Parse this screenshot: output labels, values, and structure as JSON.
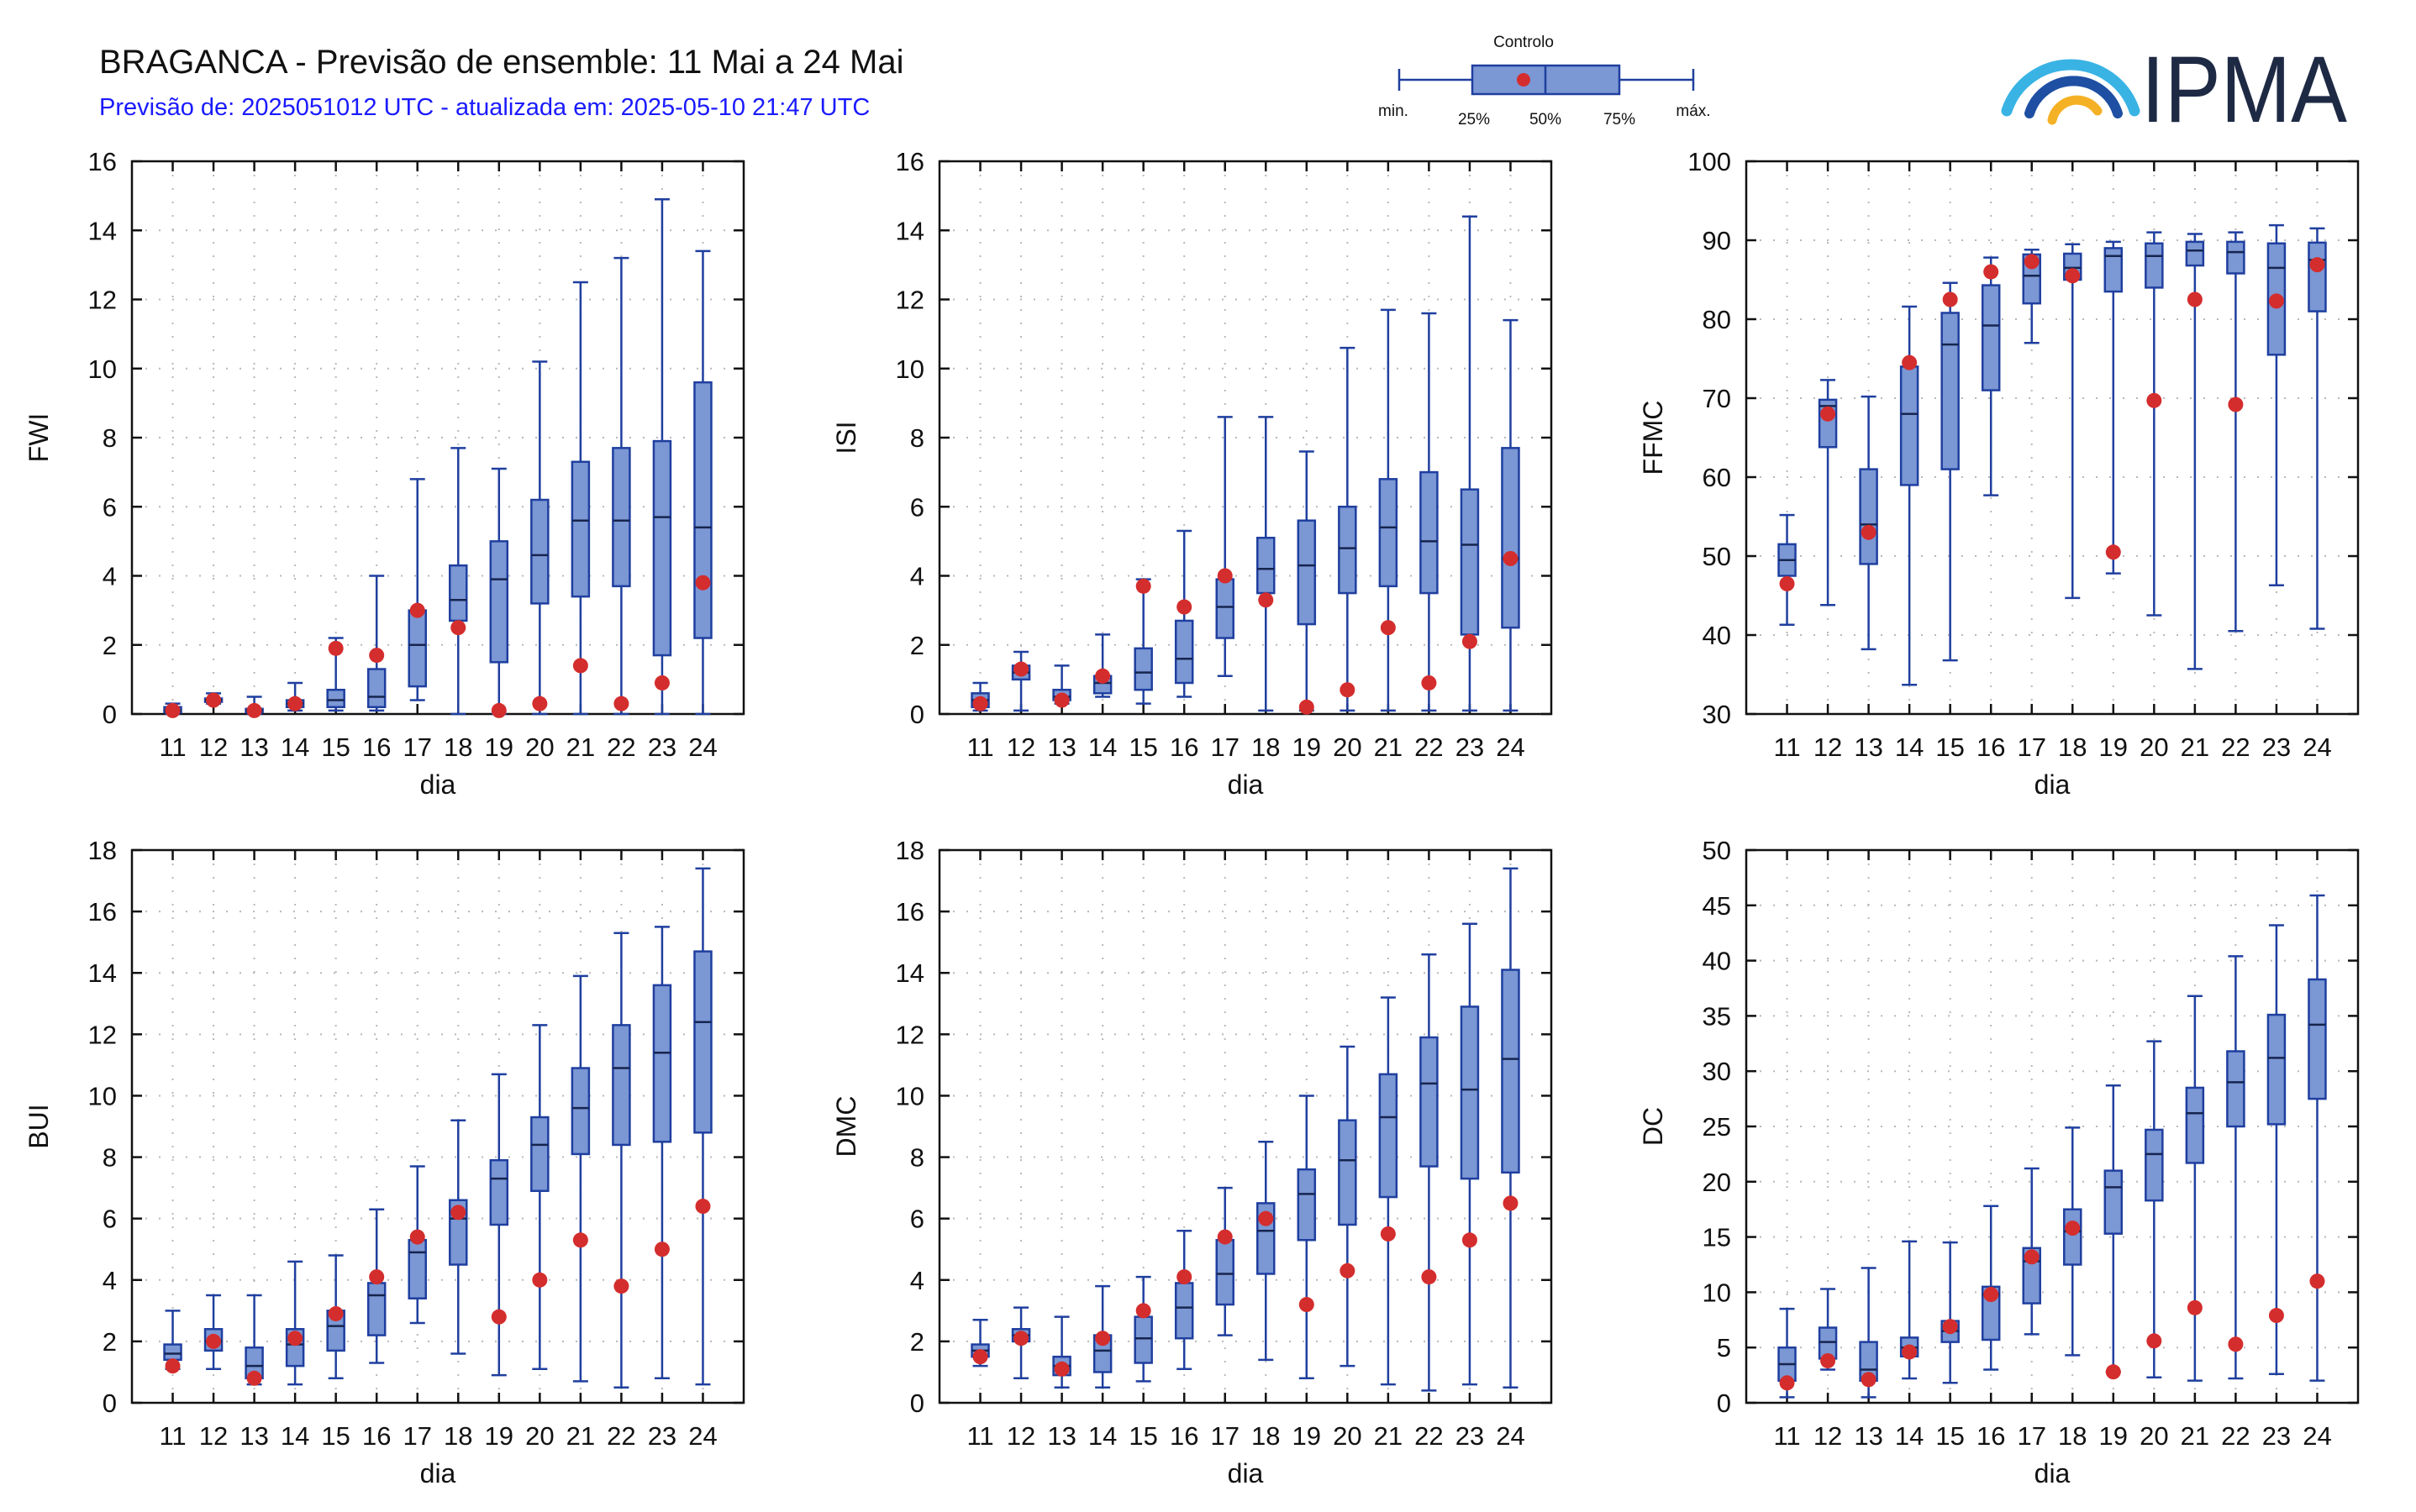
{
  "header": {
    "title": "BRAGANCA - Previsão de ensemble: 11 Mai a 24 Mai",
    "subtitle": "Previsão de: 2025051012 UTC - atualizada em: 2025-05-10 21:47 UTC"
  },
  "legend": {
    "control_label": "Controlo",
    "min_label": "min.",
    "p25_label": "25%",
    "p50_label": "50%",
    "p75_label": "75%",
    "max_label": "máx."
  },
  "logo": {
    "text": "IPMA"
  },
  "colors": {
    "box_fill": "#7b97d4",
    "box_stroke": "#1f3f9f",
    "control": "#d42d2d",
    "grid": "#b8b8b8"
  },
  "chart_data": [
    {
      "type": "box",
      "ylabel": "FWI",
      "xlabel": "dia",
      "ylim": [
        0,
        16
      ],
      "yticks": [
        0,
        2,
        4,
        6,
        8,
        10,
        12,
        14,
        16
      ],
      "categories": [
        "11",
        "12",
        "13",
        "14",
        "15",
        "16",
        "17",
        "18",
        "19",
        "20",
        "21",
        "22",
        "23",
        "24"
      ],
      "boxes": [
        {
          "min": 0,
          "q1": 0.05,
          "median": 0.1,
          "q3": 0.2,
          "max": 0.3
        },
        {
          "min": 0.3,
          "q1": 0.35,
          "median": 0.4,
          "q3": 0.45,
          "max": 0.6
        },
        {
          "min": 0,
          "q1": 0.05,
          "median": 0.1,
          "q3": 0.15,
          "max": 0.5
        },
        {
          "min": 0.1,
          "q1": 0.2,
          "median": 0.3,
          "q3": 0.4,
          "max": 0.9
        },
        {
          "min": 0.1,
          "q1": 0.2,
          "median": 0.4,
          "q3": 0.7,
          "max": 2.2
        },
        {
          "min": 0.1,
          "q1": 0.2,
          "median": 0.5,
          "q3": 1.3,
          "max": 4.0
        },
        {
          "min": 0.4,
          "q1": 0.8,
          "median": 2.0,
          "q3": 3.0,
          "max": 6.8
        },
        {
          "min": 0,
          "q1": 2.7,
          "median": 3.3,
          "q3": 4.3,
          "max": 7.7
        },
        {
          "min": 0,
          "q1": 1.5,
          "median": 3.9,
          "q3": 5.0,
          "max": 7.1
        },
        {
          "min": 0,
          "q1": 3.2,
          "median": 4.6,
          "q3": 6.2,
          "max": 10.2
        },
        {
          "min": 0,
          "q1": 3.4,
          "median": 5.6,
          "q3": 7.3,
          "max": 12.5
        },
        {
          "min": 0,
          "q1": 3.7,
          "median": 5.6,
          "q3": 7.7,
          "max": 13.2
        },
        {
          "min": 0,
          "q1": 1.7,
          "median": 5.7,
          "q3": 7.9,
          "max": 14.9
        },
        {
          "min": 0,
          "q1": 2.2,
          "median": 5.4,
          "q3": 9.6,
          "max": 13.4
        }
      ],
      "control": [
        0.1,
        0.4,
        0.1,
        0.3,
        1.9,
        1.7,
        3.0,
        2.5,
        0.1,
        0.3,
        1.4,
        0.3,
        0.9,
        3.8
      ]
    },
    {
      "type": "box",
      "ylabel": "ISI",
      "xlabel": "dia",
      "ylim": [
        0,
        16
      ],
      "yticks": [
        0,
        2,
        4,
        6,
        8,
        10,
        12,
        14,
        16
      ],
      "categories": [
        "11",
        "12",
        "13",
        "14",
        "15",
        "16",
        "17",
        "18",
        "19",
        "20",
        "21",
        "22",
        "23",
        "24"
      ],
      "boxes": [
        {
          "min": 0.1,
          "q1": 0.2,
          "median": 0.4,
          "q3": 0.6,
          "max": 0.9
        },
        {
          "min": 0.1,
          "q1": 1.0,
          "median": 1.2,
          "q3": 1.4,
          "max": 1.8
        },
        {
          "min": 0.3,
          "q1": 0.4,
          "median": 0.5,
          "q3": 0.7,
          "max": 1.4
        },
        {
          "min": 0.5,
          "q1": 0.6,
          "median": 0.9,
          "q3": 1.1,
          "max": 2.3
        },
        {
          "min": 0.3,
          "q1": 0.7,
          "median": 1.2,
          "q3": 1.9,
          "max": 3.9
        },
        {
          "min": 0.5,
          "q1": 0.9,
          "median": 1.6,
          "q3": 2.7,
          "max": 5.3
        },
        {
          "min": 1.1,
          "q1": 2.2,
          "median": 3.1,
          "q3": 3.9,
          "max": 8.6
        },
        {
          "min": 0.1,
          "q1": 3.5,
          "median": 4.2,
          "q3": 5.1,
          "max": 8.6
        },
        {
          "min": 0.1,
          "q1": 2.6,
          "median": 4.3,
          "q3": 5.6,
          "max": 7.6
        },
        {
          "min": 0.1,
          "q1": 3.5,
          "median": 4.8,
          "q3": 6.0,
          "max": 10.6
        },
        {
          "min": 0.1,
          "q1": 3.7,
          "median": 5.4,
          "q3": 6.8,
          "max": 11.7
        },
        {
          "min": 0.1,
          "q1": 3.5,
          "median": 5.0,
          "q3": 7.0,
          "max": 11.6
        },
        {
          "min": 0.1,
          "q1": 2.3,
          "median": 4.9,
          "q3": 6.5,
          "max": 14.4
        },
        {
          "min": 0.1,
          "q1": 2.5,
          "median": 4.5,
          "q3": 7.7,
          "max": 11.4
        }
      ],
      "control": [
        0.3,
        1.3,
        0.4,
        1.1,
        3.7,
        3.1,
        4.0,
        3.3,
        0.2,
        0.7,
        2.5,
        0.9,
        2.1,
        4.5
      ]
    },
    {
      "type": "box",
      "ylabel": "FFMC",
      "xlabel": "dia",
      "ylim": [
        30,
        100
      ],
      "yticks": [
        30,
        40,
        50,
        60,
        70,
        80,
        90,
        100
      ],
      "categories": [
        "11",
        "12",
        "13",
        "14",
        "15",
        "16",
        "17",
        "18",
        "19",
        "20",
        "21",
        "22",
        "23",
        "24"
      ],
      "boxes": [
        {
          "min": 41.3,
          "q1": 47.5,
          "median": 49.5,
          "q3": 51.5,
          "max": 55.2
        },
        {
          "min": 43.8,
          "q1": 63.8,
          "median": 69.0,
          "q3": 69.8,
          "max": 72.3
        },
        {
          "min": 38.2,
          "q1": 49.0,
          "median": 54.0,
          "q3": 61.0,
          "max": 70.2
        },
        {
          "min": 33.7,
          "q1": 59.0,
          "median": 68.0,
          "q3": 74.0,
          "max": 81.6
        },
        {
          "min": 36.8,
          "q1": 61.0,
          "median": 76.8,
          "q3": 80.8,
          "max": 84.6
        },
        {
          "min": 57.7,
          "q1": 71.0,
          "median": 79.2,
          "q3": 84.3,
          "max": 87.8
        },
        {
          "min": 77.0,
          "q1": 82.0,
          "median": 85.5,
          "q3": 88.2,
          "max": 88.8
        },
        {
          "min": 44.7,
          "q1": 85.0,
          "median": 86.5,
          "q3": 88.3,
          "max": 89.5
        },
        {
          "min": 47.8,
          "q1": 83.5,
          "median": 88.0,
          "q3": 89.0,
          "max": 89.8
        },
        {
          "min": 42.5,
          "q1": 84.0,
          "median": 88.0,
          "q3": 89.6,
          "max": 91.0
        },
        {
          "min": 35.7,
          "q1": 86.8,
          "median": 88.7,
          "q3": 89.8,
          "max": 90.8
        },
        {
          "min": 40.5,
          "q1": 85.8,
          "median": 88.5,
          "q3": 89.8,
          "max": 91.0
        },
        {
          "min": 46.3,
          "q1": 75.5,
          "median": 86.5,
          "q3": 89.6,
          "max": 91.9
        },
        {
          "min": 40.8,
          "q1": 81.0,
          "median": 87.5,
          "q3": 89.7,
          "max": 91.5
        }
      ],
      "control": [
        46.5,
        68.0,
        53.0,
        74.5,
        82.5,
        86.0,
        87.3,
        85.5,
        50.5,
        69.7,
        82.5,
        69.2,
        82.3,
        86.9
      ]
    },
    {
      "type": "box",
      "ylabel": "BUI",
      "xlabel": "dia",
      "ylim": [
        0,
        18
      ],
      "yticks": [
        0,
        2,
        4,
        6,
        8,
        10,
        12,
        14,
        16,
        18
      ],
      "categories": [
        "11",
        "12",
        "13",
        "14",
        "15",
        "16",
        "17",
        "18",
        "19",
        "20",
        "21",
        "22",
        "23",
        "24"
      ],
      "boxes": [
        {
          "min": 1.1,
          "q1": 1.4,
          "median": 1.6,
          "q3": 1.9,
          "max": 3.0
        },
        {
          "min": 1.1,
          "q1": 1.7,
          "median": 2.0,
          "q3": 2.4,
          "max": 3.5
        },
        {
          "min": 0.6,
          "q1": 0.8,
          "median": 1.2,
          "q3": 1.8,
          "max": 3.5
        },
        {
          "min": 0.6,
          "q1": 1.2,
          "median": 1.9,
          "q3": 2.4,
          "max": 4.6
        },
        {
          "min": 0.8,
          "q1": 1.7,
          "median": 2.5,
          "q3": 3.0,
          "max": 4.8
        },
        {
          "min": 1.3,
          "q1": 2.2,
          "median": 3.5,
          "q3": 3.9,
          "max": 6.3
        },
        {
          "min": 2.6,
          "q1": 3.4,
          "median": 4.9,
          "q3": 5.3,
          "max": 7.7
        },
        {
          "min": 1.6,
          "q1": 4.5,
          "median": 6.0,
          "q3": 6.6,
          "max": 9.2
        },
        {
          "min": 0.9,
          "q1": 5.8,
          "median": 7.3,
          "q3": 7.9,
          "max": 10.7
        },
        {
          "min": 1.1,
          "q1": 6.9,
          "median": 8.4,
          "q3": 9.3,
          "max": 12.3
        },
        {
          "min": 0.7,
          "q1": 8.1,
          "median": 9.6,
          "q3": 10.9,
          "max": 13.9
        },
        {
          "min": 0.5,
          "q1": 8.4,
          "median": 10.9,
          "q3": 12.3,
          "max": 15.3
        },
        {
          "min": 0.8,
          "q1": 8.5,
          "median": 11.4,
          "q3": 13.6,
          "max": 15.5
        },
        {
          "min": 0.6,
          "q1": 8.8,
          "median": 12.4,
          "q3": 14.7,
          "max": 17.4
        }
      ],
      "control": [
        1.2,
        2.0,
        0.8,
        2.1,
        2.9,
        4.1,
        5.4,
        6.2,
        2.8,
        4.0,
        5.3,
        3.8,
        5.0,
        6.4
      ]
    },
    {
      "type": "box",
      "ylabel": "DMC",
      "xlabel": "dia",
      "ylim": [
        0,
        18
      ],
      "yticks": [
        0,
        2,
        4,
        6,
        8,
        10,
        12,
        14,
        16,
        18
      ],
      "categories": [
        "11",
        "12",
        "13",
        "14",
        "15",
        "16",
        "17",
        "18",
        "19",
        "20",
        "21",
        "22",
        "23",
        "24"
      ],
      "boxes": [
        {
          "min": 1.2,
          "q1": 1.5,
          "median": 1.7,
          "q3": 1.9,
          "max": 2.7
        },
        {
          "min": 0.8,
          "q1": 2.0,
          "median": 2.2,
          "q3": 2.4,
          "max": 3.1
        },
        {
          "min": 0.5,
          "q1": 0.9,
          "median": 1.2,
          "q3": 1.5,
          "max": 2.8
        },
        {
          "min": 0.5,
          "q1": 1.0,
          "median": 1.7,
          "q3": 2.2,
          "max": 3.8
        },
        {
          "min": 0.7,
          "q1": 1.3,
          "median": 2.1,
          "q3": 2.8,
          "max": 4.1
        },
        {
          "min": 1.1,
          "q1": 2.1,
          "median": 3.1,
          "q3": 3.9,
          "max": 5.6
        },
        {
          "min": 2.2,
          "q1": 3.2,
          "median": 4.2,
          "q3": 5.3,
          "max": 7.0
        },
        {
          "min": 1.4,
          "q1": 4.2,
          "median": 5.6,
          "q3": 6.5,
          "max": 8.5
        },
        {
          "min": 0.8,
          "q1": 5.3,
          "median": 6.8,
          "q3": 7.6,
          "max": 10.0
        },
        {
          "min": 1.2,
          "q1": 5.8,
          "median": 7.9,
          "q3": 9.2,
          "max": 11.6
        },
        {
          "min": 0.6,
          "q1": 6.7,
          "median": 9.3,
          "q3": 10.7,
          "max": 13.2
        },
        {
          "min": 0.4,
          "q1": 7.7,
          "median": 10.4,
          "q3": 11.9,
          "max": 14.6
        },
        {
          "min": 0.6,
          "q1": 7.3,
          "median": 10.2,
          "q3": 12.9,
          "max": 15.6
        },
        {
          "min": 0.5,
          "q1": 7.5,
          "median": 11.2,
          "q3": 14.1,
          "max": 17.4
        }
      ],
      "control": [
        1.5,
        2.1,
        1.1,
        2.1,
        3.0,
        4.1,
        5.4,
        6.0,
        3.2,
        4.3,
        5.5,
        4.1,
        5.3,
        6.5
      ]
    },
    {
      "type": "box",
      "ylabel": "DC",
      "xlabel": "dia",
      "ylim": [
        0,
        50
      ],
      "yticks": [
        0,
        5,
        10,
        15,
        20,
        25,
        30,
        35,
        40,
        45,
        50
      ],
      "categories": [
        "11",
        "12",
        "13",
        "14",
        "15",
        "16",
        "17",
        "18",
        "19",
        "20",
        "21",
        "22",
        "23",
        "24"
      ],
      "boxes": [
        {
          "min": 0.5,
          "q1": 2.0,
          "median": 3.5,
          "q3": 5.0,
          "max": 8.5
        },
        {
          "min": 3.0,
          "q1": 4.0,
          "median": 5.5,
          "q3": 6.8,
          "max": 10.3
        },
        {
          "min": 0.5,
          "q1": 2.0,
          "median": 3.0,
          "q3": 5.5,
          "max": 12.2
        },
        {
          "min": 2.2,
          "q1": 4.2,
          "median": 5.0,
          "q3": 5.9,
          "max": 14.6
        },
        {
          "min": 1.8,
          "q1": 5.5,
          "median": 6.5,
          "q3": 7.4,
          "max": 14.5
        },
        {
          "min": 3.0,
          "q1": 5.7,
          "median": 9.8,
          "q3": 10.5,
          "max": 17.8
        },
        {
          "min": 6.2,
          "q1": 9.0,
          "median": 12.8,
          "q3": 14.0,
          "max": 21.2
        },
        {
          "min": 4.3,
          "q1": 12.5,
          "median": 15.5,
          "q3": 17.5,
          "max": 24.9
        },
        {
          "min": 2.8,
          "q1": 15.3,
          "median": 19.5,
          "q3": 21.0,
          "max": 28.7
        },
        {
          "min": 2.3,
          "q1": 18.3,
          "median": 22.5,
          "q3": 24.7,
          "max": 32.7
        },
        {
          "min": 2.0,
          "q1": 21.7,
          "median": 26.2,
          "q3": 28.5,
          "max": 36.8
        },
        {
          "min": 2.2,
          "q1": 25.0,
          "median": 29.0,
          "q3": 31.8,
          "max": 40.4
        },
        {
          "min": 2.6,
          "q1": 25.2,
          "median": 31.2,
          "q3": 35.1,
          "max": 43.2
        },
        {
          "min": 2.0,
          "q1": 27.5,
          "median": 34.2,
          "q3": 38.3,
          "max": 45.9
        }
      ],
      "control": [
        1.8,
        3.8,
        2.1,
        4.6,
        6.9,
        9.8,
        13.2,
        15.8,
        2.8,
        5.6,
        8.6,
        5.3,
        7.9,
        11.0
      ]
    }
  ]
}
